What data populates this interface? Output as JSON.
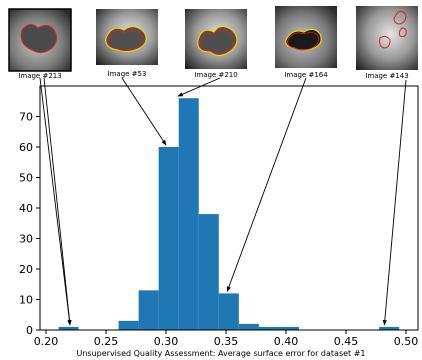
{
  "chart_data": {
    "type": "bar",
    "xlabel": "Unsupervised Quality Assessment: Average surface error for dataset #1",
    "xlim": [
      0.195,
      0.51
    ],
    "ylim": [
      0,
      80
    ],
    "x_ticks": [
      "0.20",
      "0.25",
      "0.30",
      "0.35",
      "0.40",
      "0.45",
      "0.50"
    ],
    "y_ticks": [
      "0",
      "10",
      "20",
      "30",
      "40",
      "50",
      "60",
      "70"
    ],
    "bin_width": 0.0167,
    "bins": [
      {
        "x0": 0.2105,
        "count": 1
      },
      {
        "x0": 0.2605,
        "count": 3
      },
      {
        "x0": 0.2772,
        "count": 13
      },
      {
        "x0": 0.2939,
        "count": 60
      },
      {
        "x0": 0.3106,
        "count": 76
      },
      {
        "x0": 0.3273,
        "count": 38
      },
      {
        "x0": 0.344,
        "count": 12
      },
      {
        "x0": 0.3607,
        "count": 2
      },
      {
        "x0": 0.3774,
        "count": 1
      },
      {
        "x0": 0.3941,
        "count": 1
      },
      {
        "x0": 0.4776,
        "count": 1
      }
    ],
    "bar_color": "#1f77b4",
    "grid": false,
    "thumbnails": [
      {
        "label": "Image #213",
        "target": {
          "x": 0.22,
          "y": 1
        }
      },
      {
        "label": "Image #53",
        "target": {
          "x": 0.3,
          "y": 60
        }
      },
      {
        "label": "Image #210",
        "target": {
          "x": 0.31,
          "y": 76
        }
      },
      {
        "label": "Image #164",
        "target": {
          "x": 0.351,
          "y": 12
        }
      },
      {
        "label": "Image #143",
        "target": {
          "x": 0.482,
          "y": 1
        }
      }
    ],
    "contour_colors": {
      "outer": "#e02020",
      "inner": "#f0d000"
    }
  }
}
